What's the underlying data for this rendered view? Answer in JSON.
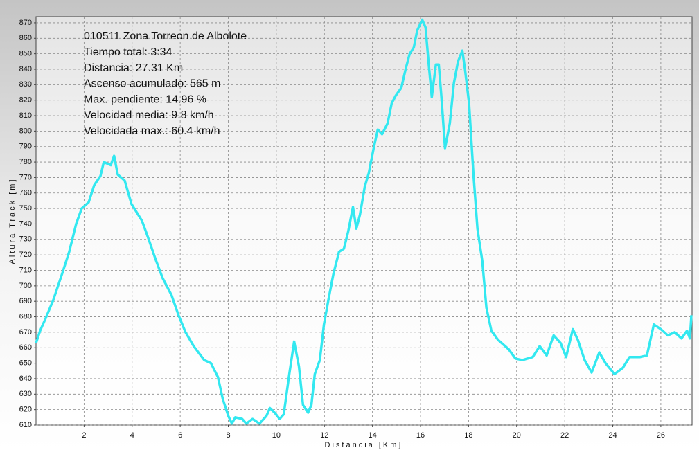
{
  "chart_data": {
    "type": "line",
    "x_label": "Distancia [Km]",
    "y_label": "Altura Track [m]",
    "annotations": [
      "010511 Zona Torreon de Albolote",
      "Tiempo total: 3:34",
      "Distancia: 27.31 Km",
      "Ascenso acumulado: 565 m",
      "Max. pendiente: 14.96 %",
      "Velocidad media: 9.8 km/h",
      "Velocidada max.: 60.4 km/h"
    ],
    "xlim": [
      0,
      27.3
    ],
    "ylim": [
      610,
      874
    ],
    "xticks": [
      2,
      4,
      6,
      8,
      10,
      12,
      14,
      16,
      18,
      20,
      22,
      24,
      26
    ],
    "yticks": [
      610,
      620,
      630,
      640,
      650,
      660,
      670,
      680,
      690,
      700,
      710,
      720,
      730,
      740,
      750,
      760,
      770,
      780,
      790,
      800,
      810,
      820,
      830,
      840,
      850,
      860,
      870
    ],
    "grid": true,
    "x": [
      0,
      0.17,
      0.4,
      0.72,
      1.09,
      1.38,
      1.67,
      1.9,
      2.19,
      2.42,
      2.68,
      2.82,
      3.11,
      3.25,
      3.4,
      3.69,
      3.97,
      4.41,
      4.69,
      4.98,
      5.27,
      5.64,
      5.93,
      6.22,
      6.56,
      7.0,
      7.28,
      7.57,
      7.77,
      8.0,
      8.15,
      8.29,
      8.58,
      8.75,
      9.01,
      9.3,
      9.59,
      9.73,
      9.93,
      10.14,
      10.31,
      10.54,
      10.74,
      10.94,
      11.11,
      11.32,
      11.46,
      11.6,
      11.81,
      11.98,
      12.18,
      12.38,
      12.61,
      12.81,
      12.99,
      13.19,
      13.33,
      13.48,
      13.68,
      13.85,
      14.05,
      14.22,
      14.4,
      14.63,
      14.8,
      14.97,
      15.2,
      15.38,
      15.55,
      15.72,
      15.86,
      16.07,
      16.21,
      16.33,
      16.47,
      16.64,
      16.76,
      16.87,
      17.02,
      17.22,
      17.39,
      17.56,
      17.74,
      17.85,
      18.02,
      18.2,
      18.37,
      18.57,
      18.74,
      18.95,
      19.23,
      19.67,
      19.95,
      20.24,
      20.67,
      20.96,
      21.25,
      21.54,
      21.83,
      22.06,
      22.34,
      22.55,
      22.83,
      23.12,
      23.44,
      23.7,
      24.07,
      24.42,
      24.7,
      25.14,
      25.42,
      25.71,
      26.0,
      26.29,
      26.58,
      26.86,
      27.09,
      27.21,
      27.27
    ],
    "series": [
      {
        "color": "#33e8f0",
        "values": [
          663,
          671,
          679,
          691,
          708,
          722,
          740,
          750,
          754,
          765,
          771,
          780,
          778,
          784,
          772,
          768,
          753,
          742,
          730,
          717,
          705,
          694,
          681,
          670,
          661,
          652,
          650,
          641,
          627,
          616,
          611,
          615,
          614,
          611,
          614,
          611,
          616,
          621,
          618,
          614,
          617,
          643,
          664,
          648,
          623,
          618,
          623,
          643,
          652,
          675,
          692,
          708,
          722,
          724,
          735,
          751,
          737,
          746,
          764,
          773,
          789,
          801,
          798,
          805,
          818,
          823,
          828,
          840,
          850,
          854,
          865,
          872,
          867,
          845,
          822,
          843,
          843,
          822,
          789,
          805,
          831,
          845,
          852,
          840,
          818,
          773,
          737,
          716,
          686,
          671,
          665,
          659,
          653,
          652,
          654,
          661,
          655,
          668,
          663,
          654,
          672,
          665,
          652,
          644,
          657,
          650,
          643,
          647,
          654,
          654,
          655,
          675,
          672,
          668,
          670,
          666,
          671,
          666,
          681
        ]
      }
    ]
  }
}
